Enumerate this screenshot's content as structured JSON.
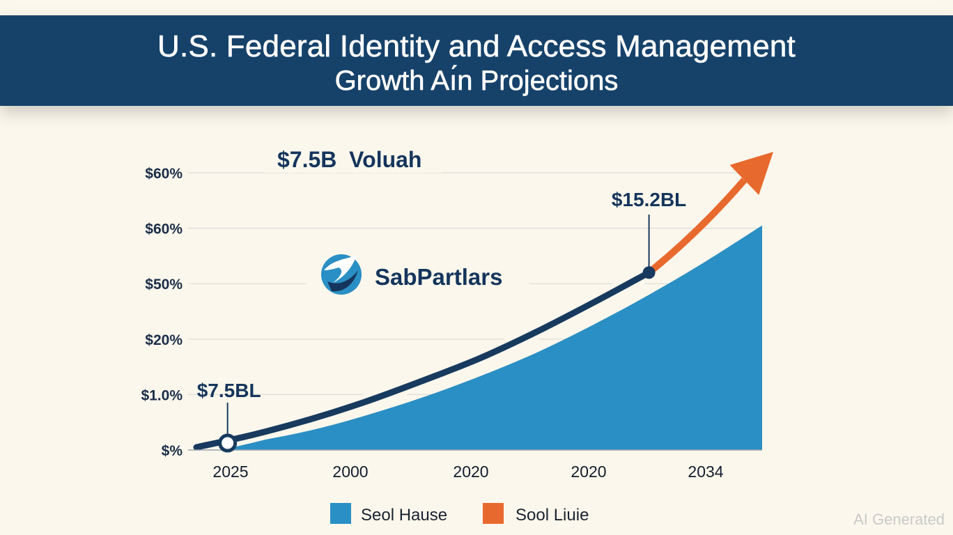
{
  "title": {
    "line1": "U.S. Federal Identity and Access Management",
    "line2": "Growth Aı́n Projections"
  },
  "logo": {
    "name": "SabPartlars",
    "icon": "logo-bird-icon"
  },
  "headline_callout": "$7.5B  Voluah",
  "watermark": "AI Generated",
  "colors": {
    "banner": "#16426a",
    "area": "#2a8fc4",
    "line": "#173a5e",
    "arrow": "#e8692e",
    "background": "#fbf7ec"
  },
  "chart_data": {
    "type": "area",
    "title": "U.S. Federal Identity and Access Management Growth Aı́n Projections",
    "yticks": [
      "$60%",
      "$60%",
      "$50%",
      "$20%",
      "$1.0%",
      "$%"
    ],
    "xticks": [
      "2025",
      "2000",
      "2020",
      "2020",
      "2034"
    ],
    "ylim": [
      0,
      100
    ],
    "series": [
      {
        "name": "Seol Hause",
        "kind": "area",
        "color": "#2a8fc4",
        "x": [
          0,
          10,
          20,
          30,
          40,
          50,
          60,
          70,
          80,
          90,
          100
        ],
        "y": [
          0,
          3,
          7,
          12.5,
          19,
          26.5,
          35,
          45,
          56,
          68,
          81
        ]
      },
      {
        "name": "Sool Liuie",
        "kind": "trend-arrow",
        "color": "#e8692e",
        "x": [
          0,
          10,
          20,
          30,
          40,
          50,
          60,
          70,
          80
        ],
        "y": [
          1,
          5.5,
          11,
          17.5,
          25,
          33,
          42.5,
          53,
          64
        ]
      }
    ],
    "annotations": [
      {
        "label": "$7.5BL",
        "x": 5.5,
        "y": 2.5
      },
      {
        "label": "$15.2BL",
        "x": 80,
        "y": 64
      }
    ],
    "legend": [
      {
        "label": "Seol Hause",
        "color": "#2a8fc4"
      },
      {
        "label": "Sool Liuie",
        "color": "#e8692e"
      }
    ]
  }
}
